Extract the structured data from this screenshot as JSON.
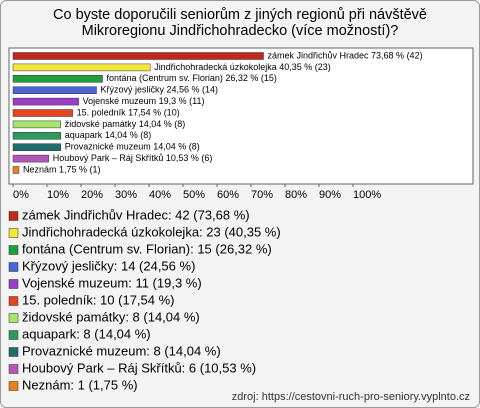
{
  "chart_data": {
    "type": "bar",
    "orientation": "horizontal",
    "title": "Co byste doporučili seniorům z jiných regionů při návštěvě Mikroregionu Jindřichohradecko (více možností)?",
    "categories": [
      "zámek Jindřichův Hradec",
      "Jindřichohradecká úzkokolejka",
      "fontána (Centrum sv. Florian)",
      "Křýzový jesličky",
      "Vojenské muzeum",
      "15. poledník",
      "židovské památky",
      "aquapark",
      "Provaznické muzeum",
      "Houbový Park – Ráj Skřítků",
      "Neznám"
    ],
    "values": [
      73.68,
      40.35,
      26.32,
      24.56,
      19.3,
      17.54,
      14.04,
      14.04,
      14.04,
      10.53,
      1.75
    ],
    "value_labels": [
      "zámek Jindřichův Hradec 73,68 % (42)",
      "Jindřichohradecká úzkokolejka 40,35 % (23)",
      "fontána (Centrum sv. Florian) 26,32 % (15)",
      "Křýzový jesličky 24,56 % (14)",
      "Vojenské muzeum 19,3 % (11)",
      "15. poledník 17,54 % (10)",
      "židovské památky 14,04 % (8)",
      "aquapark 14,04 % (8)",
      "Provaznické muzeum 14,04 % (8)",
      "Houbový Park – Ráj Skřítků 10,53 % (6)",
      "Neznám 1,75 % (1)"
    ],
    "colors": [
      "#c0281c",
      "#f2e63a",
      "#1f9e3a",
      "#4a64d8",
      "#9a3cc8",
      "#e2461e",
      "#a8e46a",
      "#2c9a5e",
      "#1f6e6e",
      "#b458b8",
      "#e8801e"
    ],
    "legend": [
      "zámek Jindřichův Hradec: 42 (73,68 %)",
      "Jindřichohradecká úzkokolejka: 23 (40,35 %)",
      "fontána (Centrum sv. Florian): 15 (26,32 %)",
      "Křýzový jesličky: 14 (24,56 %)",
      "Vojenské muzeum: 11 (19,3 %)",
      "15. poledník: 10 (17,54 %)",
      "židovské památky: 8 (14,04 %)",
      "aquapark: 8 (14,04 %)",
      "Provaznické muzeum: 8 (14,04 %)",
      "Houbový Park – Ráj Skřítků: 6 (10,53 %)",
      "Neznám: 1 (1,75 %)"
    ],
    "xlim": [
      0,
      100
    ],
    "xticks": [
      {
        "value": 0,
        "label": "0%"
      },
      {
        "value": 10,
        "label": "10%"
      },
      {
        "value": 20,
        "label": "20%"
      },
      {
        "value": 30,
        "label": "30%"
      },
      {
        "value": 40,
        "label": "40%"
      },
      {
        "value": 50,
        "label": "50%"
      },
      {
        "value": 60,
        "label": "60%"
      },
      {
        "value": 70,
        "label": "70%"
      },
      {
        "value": 80,
        "label": "80%"
      },
      {
        "value": 90,
        "label": "90%"
      },
      {
        "value": 100,
        "label": "100%"
      }
    ],
    "source": "zdroj: https://cestovni-ruch-pro-seniory.vyplnto.cz"
  }
}
